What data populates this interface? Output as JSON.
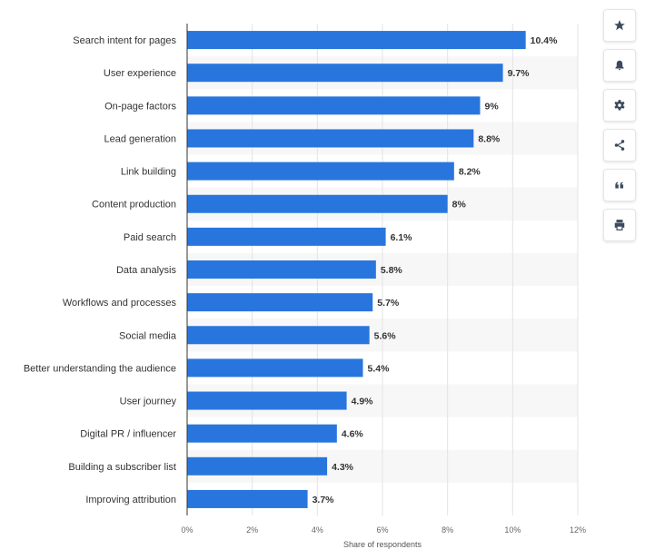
{
  "chart_data": {
    "type": "bar",
    "orientation": "horizontal",
    "categories": [
      "Search intent for pages",
      "User experience",
      "On-page factors",
      "Lead generation",
      "Link building",
      "Content production",
      "Paid search",
      "Data analysis",
      "Workflows and processes",
      "Social media",
      "Better understanding the audience",
      "User journey",
      "Digital PR / influencer",
      "Building a subscriber list",
      "Improving attribution"
    ],
    "values": [
      10.4,
      9.7,
      9,
      8.8,
      8.2,
      8,
      6.1,
      5.8,
      5.7,
      5.6,
      5.4,
      4.9,
      4.6,
      4.3,
      3.7
    ],
    "value_labels": [
      "10.4%",
      "9.7%",
      "9%",
      "8.8%",
      "8.2%",
      "8%",
      "6.1%",
      "5.8%",
      "5.7%",
      "5.6%",
      "5.4%",
      "4.9%",
      "4.6%",
      "4.3%",
      "3.7%"
    ],
    "xticks": [
      0,
      2,
      4,
      6,
      8,
      10,
      12
    ],
    "xtick_labels": [
      "0%",
      "2%",
      "4%",
      "6%",
      "8%",
      "10%",
      "12%"
    ],
    "xlim": [
      0,
      12
    ],
    "xlabel": "Share of respondents",
    "ylabel": "",
    "grid": true,
    "bar_color": "#2876dd"
  },
  "sidebar": {
    "buttons": [
      {
        "name": "star-button",
        "icon": "star-icon"
      },
      {
        "name": "notification-button",
        "icon": "bell-icon"
      },
      {
        "name": "settings-button",
        "icon": "gear-icon"
      },
      {
        "name": "share-button",
        "icon": "share-icon"
      },
      {
        "name": "cite-button",
        "icon": "quote-icon"
      },
      {
        "name": "print-button",
        "icon": "printer-icon"
      }
    ]
  }
}
